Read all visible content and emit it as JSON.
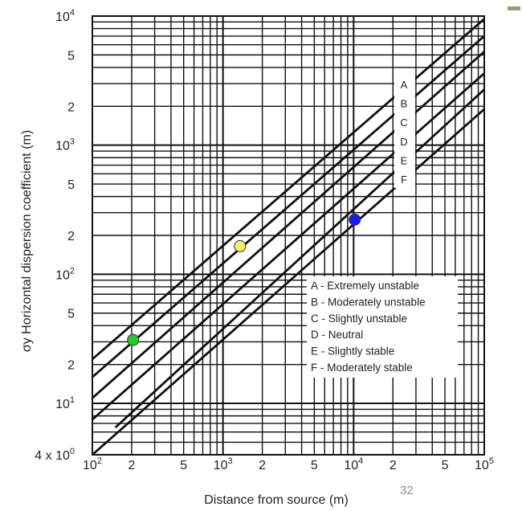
{
  "page_number": "32",
  "chart_data": {
    "type": "line",
    "x_scale": "log",
    "y_scale": "log",
    "xlim": [
      100,
      100000
    ],
    "ylim": [
      4,
      10000
    ],
    "xlabel": "Distance from source (m)",
    "ylabel": "σy Horizontal dispersion coefficient (m)",
    "grid": true,
    "x_ticks": [
      {
        "value": 100,
        "mant": "10",
        "exp": "2"
      },
      {
        "value": 200,
        "mant": "2",
        "exp": ""
      },
      {
        "value": 500,
        "mant": "5",
        "exp": ""
      },
      {
        "value": 1000,
        "mant": "10",
        "exp": "3"
      },
      {
        "value": 2000,
        "mant": "2",
        "exp": ""
      },
      {
        "value": 5000,
        "mant": "5",
        "exp": ""
      },
      {
        "value": 10000,
        "mant": "10",
        "exp": "4"
      },
      {
        "value": 20000,
        "mant": "2",
        "exp": ""
      },
      {
        "value": 50000,
        "mant": "5",
        "exp": ""
      },
      {
        "value": 100000,
        "mant": "10",
        "exp": "5"
      }
    ],
    "y_ticks": [
      {
        "value": 10000,
        "mant": "10",
        "exp": "4"
      },
      {
        "value": 5000,
        "mant": "5",
        "exp": ""
      },
      {
        "value": 2000,
        "mant": "2",
        "exp": ""
      },
      {
        "value": 1000,
        "mant": "10",
        "exp": "3"
      },
      {
        "value": 500,
        "mant": "5",
        "exp": ""
      },
      {
        "value": 200,
        "mant": "2",
        "exp": ""
      },
      {
        "value": 100,
        "mant": "10",
        "exp": "2"
      },
      {
        "value": 50,
        "mant": "5",
        "exp": ""
      },
      {
        "value": 20,
        "mant": "2",
        "exp": ""
      },
      {
        "value": 10,
        "mant": "10",
        "exp": "1"
      },
      {
        "value": 4,
        "mant": "4 x 10",
        "exp": "0"
      }
    ],
    "series": [
      {
        "name": "A",
        "x": [
          100,
          100000
        ],
        "y": [
          22,
          9500
        ]
      },
      {
        "name": "B",
        "x": [
          100,
          100000
        ],
        "y": [
          16,
          7000
        ]
      },
      {
        "name": "C",
        "x": [
          100,
          100000
        ],
        "y": [
          11,
          5300
        ]
      },
      {
        "name": "D",
        "x": [
          100,
          100000
        ],
        "y": [
          7.5,
          3600
        ]
      },
      {
        "name": "E",
        "x": [
          150,
          100000
        ],
        "y": [
          6.5,
          2700
        ]
      },
      {
        "name": "F",
        "x": [
          100,
          100000
        ],
        "y": [
          4,
          1900
        ]
      }
    ],
    "points": [
      {
        "x": 205,
        "y": 31,
        "color": "#22cc22"
      },
      {
        "x": 1350,
        "y": 165,
        "color": "#f3f06a"
      },
      {
        "x": 10200,
        "y": 265,
        "color": "#1a1aff"
      }
    ],
    "curve_labels": [
      "A",
      "B",
      "C",
      "D",
      "E",
      "F"
    ],
    "legend": [
      "A - Extremely  unstable",
      "B - Moderately unstable",
      "C - Slightly unstable",
      "D - Neutral",
      "E - Slightly stable",
      "F - Moderately stable"
    ],
    "legend_position": "lower-right"
  }
}
